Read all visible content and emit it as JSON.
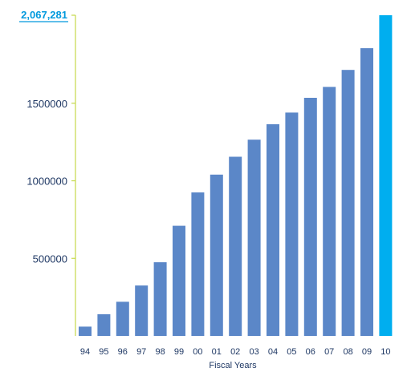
{
  "chart_data": {
    "type": "bar",
    "categories": [
      "94",
      "95",
      "96",
      "97",
      "98",
      "99",
      "00",
      "01",
      "02",
      "03",
      "04",
      "05",
      "06",
      "07",
      "08",
      "09",
      "10"
    ],
    "values": [
      60000,
      140000,
      220000,
      325000,
      475000,
      710000,
      925000,
      1040000,
      1155000,
      1265000,
      1365000,
      1440000,
      1535000,
      1605000,
      1715000,
      1855000,
      2067281
    ],
    "xlabel": "Fiscal Years",
    "ylabel": "",
    "ylim": [
      0,
      2067281
    ],
    "yticks": [
      500000,
      1000000,
      1500000
    ],
    "ytick_labels": [
      "500000",
      "1000000",
      "1500000"
    ],
    "top_label": "2,067,281",
    "highlight_index": 16,
    "grid": false,
    "colors": {
      "bar": "#5b87c8",
      "highlight": "#00aeef",
      "axis": "#c5d84a",
      "text": "#1f3864",
      "top_label": "#0099dd"
    }
  }
}
